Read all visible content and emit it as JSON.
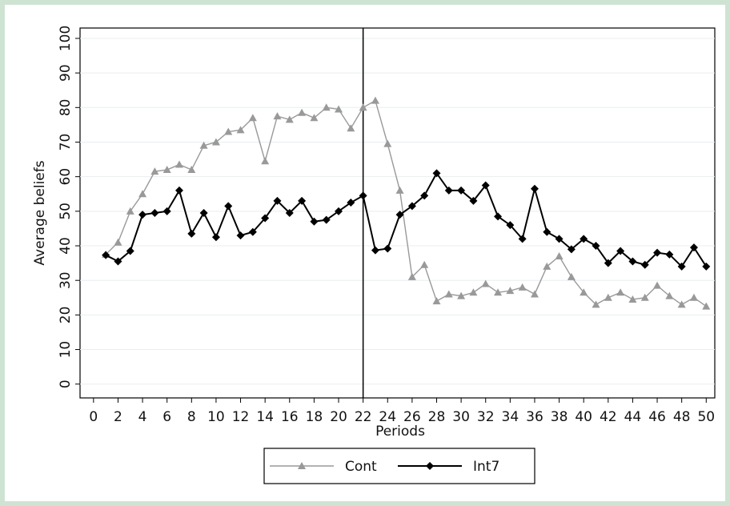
{
  "chart_data": {
    "type": "line",
    "x_label": "Periods",
    "y_label": "Average beliefs",
    "x": [
      1,
      2,
      3,
      4,
      5,
      6,
      7,
      8,
      9,
      10,
      11,
      12,
      13,
      14,
      15,
      16,
      17,
      18,
      19,
      20,
      21,
      22,
      23,
      24,
      25,
      26,
      27,
      28,
      29,
      30,
      31,
      32,
      33,
      34,
      35,
      36,
      37,
      38,
      39,
      40,
      41,
      42,
      43,
      44,
      45,
      46,
      47,
      48,
      49,
      50
    ],
    "series": [
      {
        "name": "Cont",
        "color": "#999999",
        "marker": "triangle",
        "values": [
          37.5,
          41,
          50,
          55,
          61.5,
          62,
          63.5,
          62,
          69,
          70,
          73,
          73.5,
          77,
          64.5,
          77.5,
          76.5,
          78.5,
          77,
          80,
          79.5,
          74,
          80,
          82,
          69.5,
          56,
          31,
          34.5,
          24,
          26,
          25.5,
          26.5,
          29,
          26.5,
          27,
          28,
          26,
          34,
          37,
          31,
          26.5,
          23,
          25,
          26.5,
          24.5,
          25,
          28.5,
          25.5,
          23,
          25,
          22.5
        ]
      },
      {
        "name": "Int7",
        "color": "#000000",
        "marker": "diamond",
        "values": [
          37.3,
          35.5,
          38.5,
          49,
          49.5,
          50,
          56,
          43.5,
          49.5,
          42.5,
          51.5,
          43,
          44,
          48,
          53,
          49.5,
          53,
          47,
          47.5,
          50,
          52.5,
          54.5,
          38.7,
          39.2,
          49,
          51.5,
          54.5,
          61,
          56,
          56,
          53,
          57.5,
          48.5,
          46,
          42,
          56.5,
          44,
          42,
          39,
          42,
          40,
          35,
          38.5,
          35.5,
          34.5,
          38,
          37.5,
          34,
          39.5,
          34
        ]
      }
    ],
    "vline": 22,
    "xlim": [
      -1.1,
      50.7
    ],
    "ylim": [
      -4,
      103
    ],
    "xticks": [
      0,
      2,
      4,
      6,
      8,
      10,
      12,
      14,
      16,
      18,
      20,
      22,
      24,
      26,
      28,
      30,
      32,
      34,
      36,
      38,
      40,
      42,
      44,
      46,
      48,
      50
    ],
    "yticks": [
      0,
      10,
      20,
      30,
      40,
      50,
      60,
      70,
      80,
      90,
      100
    ],
    "grid": true
  }
}
